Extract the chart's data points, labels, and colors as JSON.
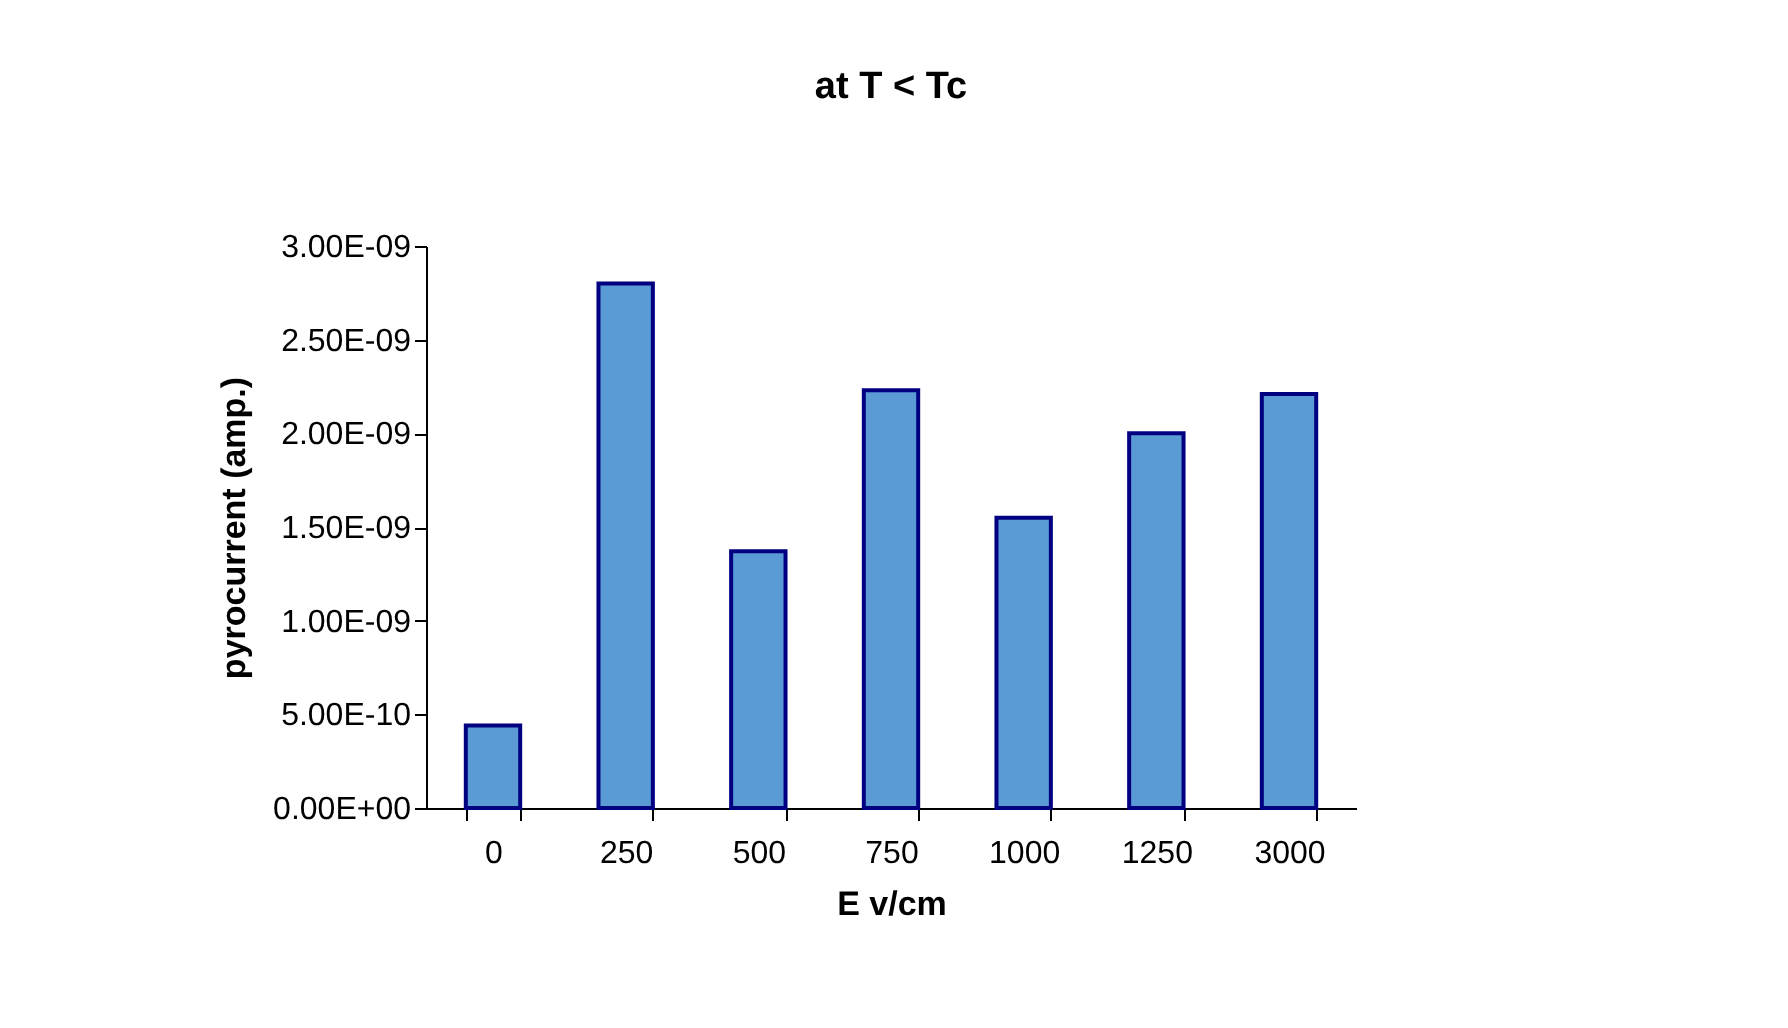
{
  "chart_data": {
    "type": "bar",
    "title": "at T < Tc",
    "xlabel": "E  v/cm",
    "ylabel": "pyrocurrent (amp.)",
    "categories": [
      "0",
      "250",
      "500",
      "750",
      "1000",
      "1250",
      "3000"
    ],
    "values": [
      4.4e-10,
      2.8e-09,
      1.37e-09,
      2.23e-09,
      1.55e-09,
      2e-09,
      2.21e-09
    ],
    "color": "#5b9bd5",
    "ylim": [
      0,
      3e-09
    ],
    "yticks": [
      {
        "value": 0,
        "label": "0.00E+00"
      },
      {
        "value": 5e-10,
        "label": "5.00E-10"
      },
      {
        "value": 1e-09,
        "label": "1.00E-09"
      },
      {
        "value": 1.5e-09,
        "label": "1.50E-09"
      },
      {
        "value": 2e-09,
        "label": "2.00E-09"
      },
      {
        "value": 2.5e-09,
        "label": "2.50E-09"
      },
      {
        "value": 3e-09,
        "label": "3.00E-09"
      }
    ],
    "grid": false
  }
}
